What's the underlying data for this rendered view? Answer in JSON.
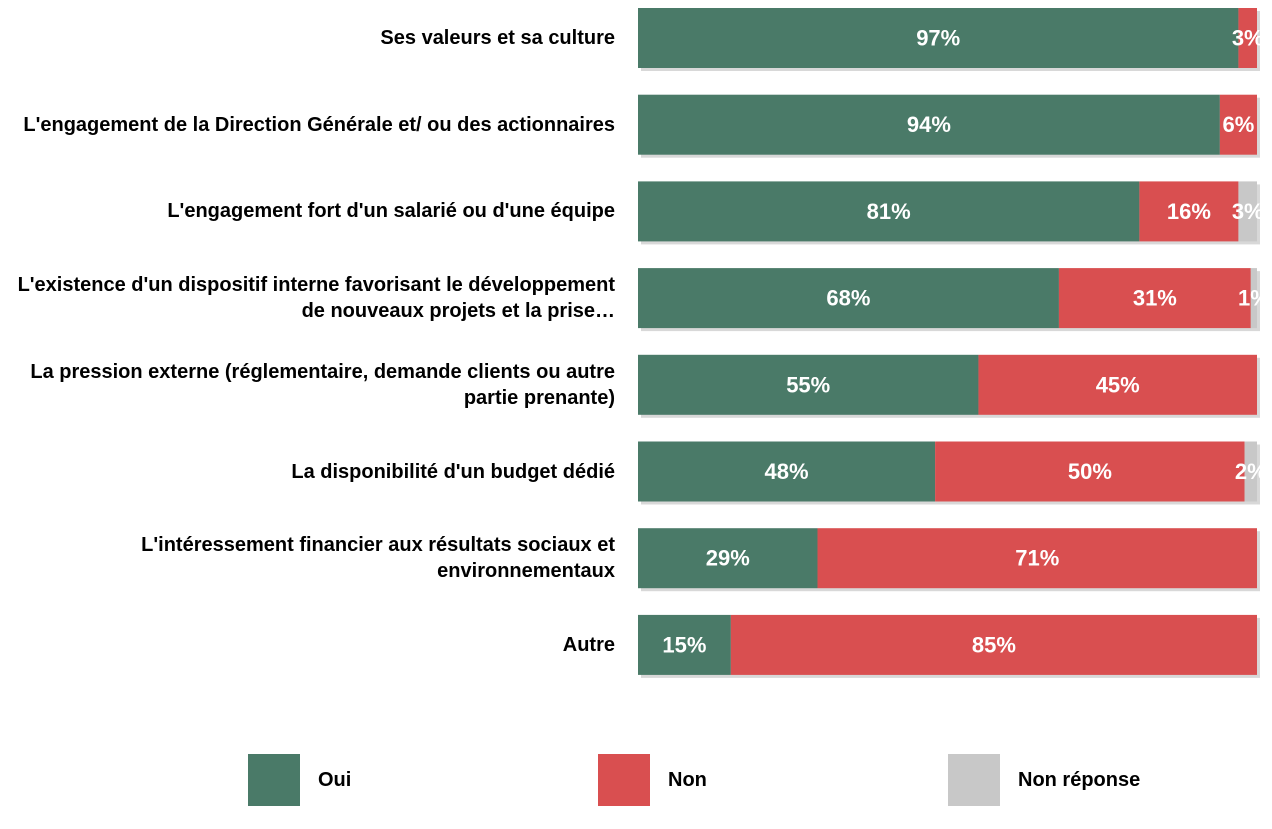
{
  "chart_data": {
    "type": "stacked-bar-horizontal",
    "categories": [
      "Ses valeurs et sa culture",
      "L'engagement de la Direction Générale et/ ou des actionnaires",
      "L'engagement fort d'un salarié ou d'une équipe",
      "L'existence d'un dispositif interne favorisant le développement de nouveaux projets et la prise…",
      "La pression externe (réglementaire, demande clients ou autre partie prenante)",
      "La disponibilité d'un budget dédié",
      "L'intéressement financier aux résultats sociaux et environnementaux",
      "Autre"
    ],
    "xlim": [
      0,
      100
    ],
    "series": [
      {
        "name": "Oui",
        "color": "#4a7a68",
        "values": [
          97,
          94,
          81,
          68,
          55,
          48,
          29,
          15
        ],
        "value_labels": [
          "97%",
          "94%",
          "81%",
          "68%",
          "55%",
          "48%",
          "29%",
          "15%"
        ]
      },
      {
        "name": "Non",
        "color": "#d94f50",
        "values": [
          3,
          6,
          16,
          31,
          45,
          50,
          71,
          85
        ],
        "value_labels": [
          "3%",
          "6%",
          "16%",
          "31%",
          "45%",
          "50%",
          "71%",
          "85%"
        ]
      },
      {
        "name": "Non réponse",
        "color": "#c8c8c8",
        "values": [
          0,
          0,
          3,
          1,
          0,
          2,
          0,
          0
        ],
        "value_labels": [
          null,
          null,
          "3%",
          "1%",
          null,
          "2%",
          null,
          null
        ]
      }
    ]
  }
}
